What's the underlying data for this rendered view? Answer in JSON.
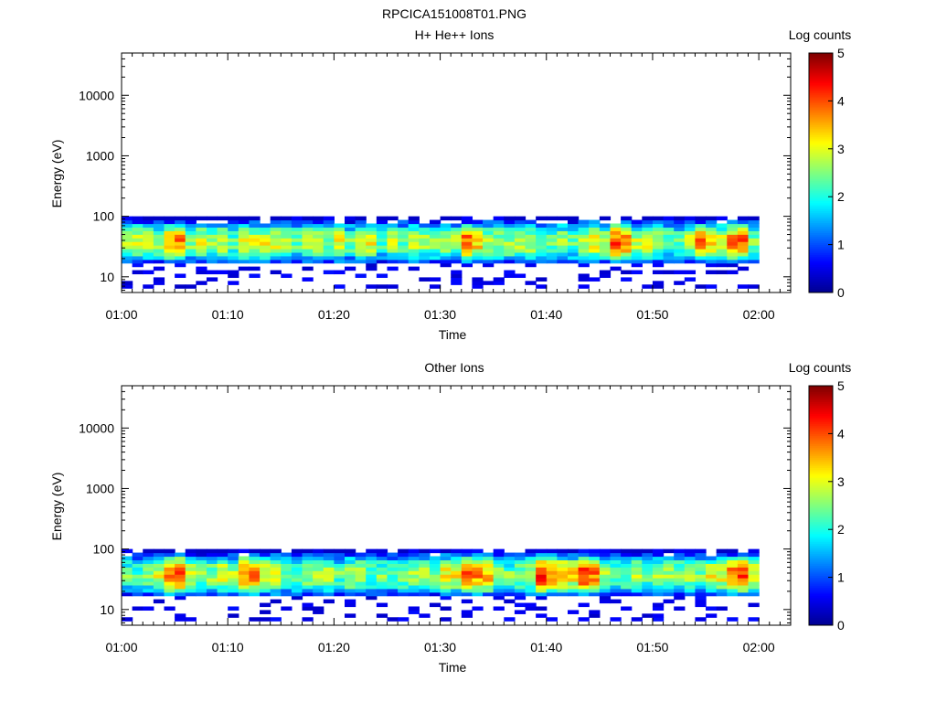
{
  "main_title": "RPCICA151008T01.PNG",
  "colors": {
    "colormap": [
      "#00008f",
      "#0000ff",
      "#007fff",
      "#00ffff",
      "#7fff7f",
      "#ffff00",
      "#ff7f00",
      "#ff0000",
      "#7f0000"
    ],
    "empty": "#ffffff"
  },
  "chart_data": [
    {
      "type": "heatmap",
      "title": "H+ He++ Ions",
      "xlabel": "Time",
      "ylabel": "Energy (eV)",
      "x_ticks": [
        "01:00",
        "01:10",
        "01:20",
        "01:30",
        "01:40",
        "01:50",
        "02:00"
      ],
      "x_range": [
        "01:00",
        "02:03"
      ],
      "y_scale": "log",
      "y_ticks": [
        10,
        100,
        1000,
        10000
      ],
      "y_tick_labels": [
        "10",
        "100",
        "1000",
        "10000"
      ],
      "y_range": [
        5.5,
        50000
      ],
      "data_time_range": [
        "01:00",
        "02:00"
      ],
      "data_energy_range": [
        6.5,
        100
      ],
      "colorbar": {
        "label": "Log counts",
        "ticks": [
          "0",
          "1",
          "2",
          "3",
          "4",
          "5"
        ],
        "range": [
          0,
          5
        ]
      },
      "peak_log_counts": 4,
      "hot_spots_minutes": [
        5,
        33,
        47,
        55,
        58
      ],
      "seed": 17
    },
    {
      "type": "heatmap",
      "title": "Other Ions",
      "xlabel": "Time",
      "ylabel": "Energy (eV)",
      "x_ticks": [
        "01:00",
        "01:10",
        "01:20",
        "01:30",
        "01:40",
        "01:50",
        "02:00"
      ],
      "x_range": [
        "01:00",
        "02:03"
      ],
      "y_scale": "log",
      "y_ticks": [
        10,
        100,
        1000,
        10000
      ],
      "y_tick_labels": [
        "10",
        "100",
        "1000",
        "10000"
      ],
      "y_range": [
        5.5,
        50000
      ],
      "data_time_range": [
        "01:00",
        "02:00"
      ],
      "data_energy_range": [
        6.5,
        100
      ],
      "colorbar": {
        "label": "Log counts",
        "ticks": [
          "0",
          "1",
          "2",
          "3",
          "4",
          "5"
        ],
        "range": [
          0,
          5
        ]
      },
      "peak_log_counts": 4.4,
      "hot_spots_minutes": [
        5,
        12,
        33,
        40,
        44,
        58
      ],
      "seed": 29
    }
  ]
}
